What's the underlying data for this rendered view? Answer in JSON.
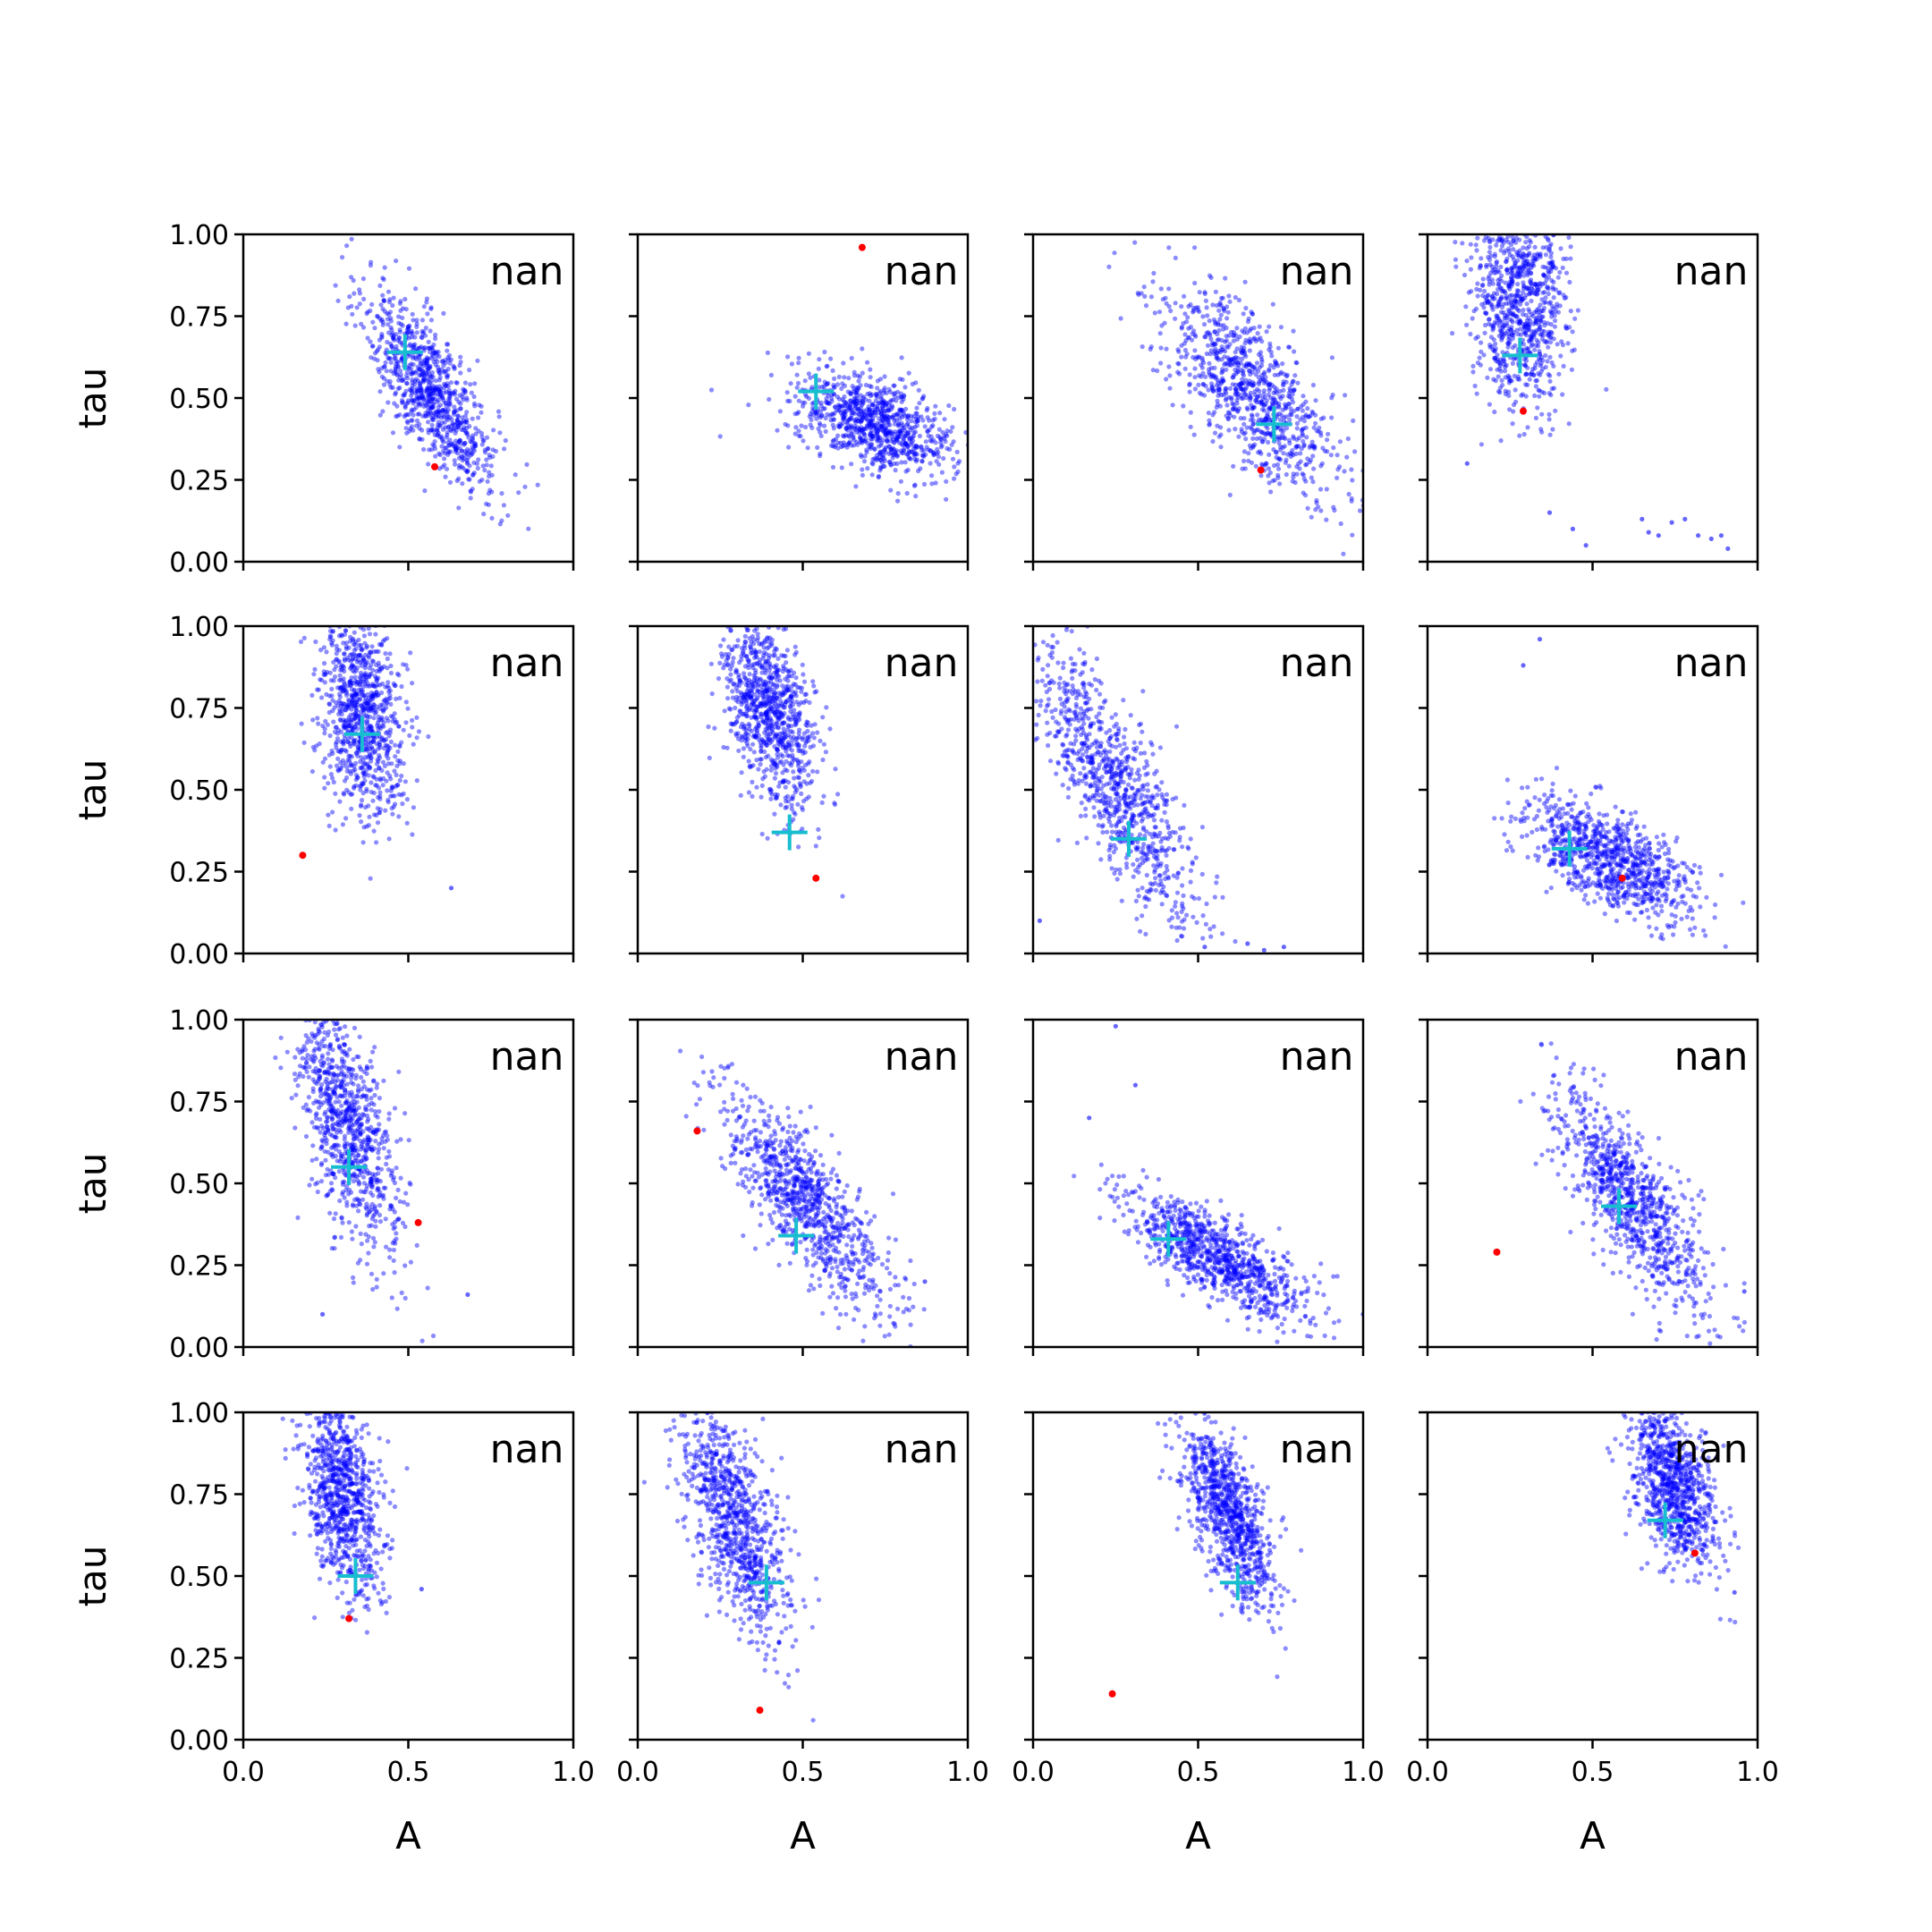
{
  "chart_data": {
    "type": "scatter",
    "layout": "4x4 grid of scatter panels with shared x and y axes",
    "xlabel": "A",
    "ylabel": "tau",
    "xlim": [
      0,
      1
    ],
    "ylim": [
      0,
      1
    ],
    "xticks": [
      "0.0",
      "0.5",
      "1.0"
    ],
    "yticks": [
      "0.00",
      "0.25",
      "0.50",
      "0.75",
      "1.00"
    ],
    "annotation": "nan",
    "colors": {
      "samples": "#0000ff",
      "true_point": "#ff0000",
      "estimate_marker": "#17becf"
    },
    "panels": [
      {
        "samples": {
          "cx": 0.57,
          "cy": 0.52,
          "sx": 0.1,
          "sy": 0.15,
          "rho": -0.75,
          "n": 900
        },
        "true_point": [
          0.58,
          0.29
        ],
        "estimate": [
          0.49,
          0.64
        ],
        "sparse_points": []
      },
      {
        "samples": {
          "cx": 0.72,
          "cy": 0.42,
          "sx": 0.12,
          "sy": 0.08,
          "rho": -0.5,
          "n": 900
        },
        "true_point": [
          0.68,
          0.96
        ],
        "estimate": [
          0.54,
          0.52
        ],
        "sparse_points": []
      },
      {
        "samples": {
          "cx": 0.66,
          "cy": 0.52,
          "sx": 0.13,
          "sy": 0.16,
          "rho": -0.7,
          "n": 900
        },
        "true_point": [
          0.69,
          0.28
        ],
        "estimate": [
          0.73,
          0.42
        ],
        "sparse_points": []
      },
      {
        "samples": {
          "cx": 0.28,
          "cy": 0.8,
          "sx": 0.07,
          "sy": 0.16,
          "rho": -0.1,
          "n": 900
        },
        "true_point": [
          0.29,
          0.46
        ],
        "estimate": [
          0.28,
          0.63
        ],
        "sparse_points": [
          [
            0.12,
            0.3
          ],
          [
            0.37,
            0.15
          ],
          [
            0.44,
            0.1
          ],
          [
            0.48,
            0.05
          ],
          [
            0.65,
            0.13
          ],
          [
            0.67,
            0.09
          ],
          [
            0.7,
            0.08
          ],
          [
            0.74,
            0.12
          ],
          [
            0.78,
            0.13
          ],
          [
            0.82,
            0.08
          ],
          [
            0.86,
            0.07
          ],
          [
            0.89,
            0.08
          ],
          [
            0.91,
            0.04
          ]
        ]
      },
      {
        "samples": {
          "cx": 0.36,
          "cy": 0.74,
          "sx": 0.065,
          "sy": 0.15,
          "rho": -0.2,
          "n": 900
        },
        "true_point": [
          0.18,
          0.3
        ],
        "estimate": [
          0.36,
          0.67
        ],
        "sparse_points": [
          [
            0.63,
            0.2
          ]
        ]
      },
      {
        "samples": {
          "cx": 0.4,
          "cy": 0.74,
          "sx": 0.07,
          "sy": 0.15,
          "rho": -0.45,
          "n": 900
        },
        "true_point": [
          0.54,
          0.23
        ],
        "estimate": [
          0.46,
          0.37
        ],
        "sparse_points": []
      },
      {
        "samples": {
          "cx": 0.24,
          "cy": 0.52,
          "sx": 0.13,
          "sy": 0.22,
          "rho": -0.82,
          "n": 900
        },
        "true_point": null,
        "estimate": [
          0.29,
          0.35
        ],
        "sparse_points": [
          [
            0.02,
            0.1
          ],
          [
            0.65,
            0.03
          ],
          [
            0.7,
            0.01
          ],
          [
            0.76,
            0.02
          ],
          [
            0.52,
            0.02
          ]
        ]
      },
      {
        "samples": {
          "cx": 0.55,
          "cy": 0.29,
          "sx": 0.13,
          "sy": 0.09,
          "rho": -0.65,
          "n": 900
        },
        "true_point": [
          0.59,
          0.23
        ],
        "estimate": [
          0.43,
          0.32
        ],
        "sparse_points": [
          [
            0.34,
            0.96
          ],
          [
            0.29,
            0.88
          ]
        ]
      },
      {
        "samples": {
          "cx": 0.31,
          "cy": 0.68,
          "sx": 0.08,
          "sy": 0.19,
          "rho": -0.6,
          "n": 900
        },
        "true_point": [
          0.53,
          0.38
        ],
        "estimate": [
          0.32,
          0.55
        ],
        "sparse_points": [
          [
            0.68,
            0.16
          ],
          [
            0.24,
            0.1
          ]
        ]
      },
      {
        "samples": {
          "cx": 0.5,
          "cy": 0.45,
          "sx": 0.13,
          "sy": 0.17,
          "rho": -0.8,
          "n": 900
        },
        "true_point": [
          0.18,
          0.66
        ],
        "estimate": [
          0.48,
          0.34
        ],
        "sparse_points": [
          [
            0.87,
            0.2
          ]
        ]
      },
      {
        "samples": {
          "cx": 0.55,
          "cy": 0.28,
          "sx": 0.14,
          "sy": 0.1,
          "rho": -0.78,
          "n": 900
        },
        "true_point": null,
        "estimate": [
          0.41,
          0.33
        ],
        "sparse_points": [
          [
            0.25,
            0.98
          ],
          [
            0.31,
            0.8
          ],
          [
            0.17,
            0.7
          ],
          [
            1.0,
            0.1
          ]
        ]
      },
      {
        "samples": {
          "cx": 0.62,
          "cy": 0.44,
          "sx": 0.12,
          "sy": 0.17,
          "rho": -0.78,
          "n": 900
        },
        "true_point": [
          0.21,
          0.29
        ],
        "estimate": [
          0.58,
          0.43
        ],
        "sparse_points": [
          [
            0.96,
            0.17
          ]
        ]
      },
      {
        "samples": {
          "cx": 0.3,
          "cy": 0.75,
          "sx": 0.06,
          "sy": 0.16,
          "rho": -0.4,
          "n": 900
        },
        "true_point": [
          0.32,
          0.37
        ],
        "estimate": [
          0.34,
          0.5
        ],
        "sparse_points": [
          [
            0.54,
            0.46
          ]
        ]
      },
      {
        "samples": {
          "cx": 0.29,
          "cy": 0.68,
          "sx": 0.08,
          "sy": 0.18,
          "rho": -0.65,
          "n": 900
        },
        "true_point": [
          0.37,
          0.09
        ],
        "estimate": [
          0.39,
          0.48
        ],
        "sparse_points": []
      },
      {
        "samples": {
          "cx": 0.59,
          "cy": 0.69,
          "sx": 0.07,
          "sy": 0.14,
          "rho": -0.65,
          "n": 900
        },
        "true_point": [
          0.24,
          0.14
        ],
        "estimate": [
          0.62,
          0.48
        ],
        "sparse_points": []
      },
      {
        "samples": {
          "cx": 0.74,
          "cy": 0.78,
          "sx": 0.065,
          "sy": 0.13,
          "rho": -0.5,
          "n": 900
        },
        "true_point": [
          0.81,
          0.57
        ],
        "estimate": [
          0.72,
          0.67
        ],
        "sparse_points": [
          [
            0.93,
            0.45
          ]
        ]
      }
    ]
  }
}
